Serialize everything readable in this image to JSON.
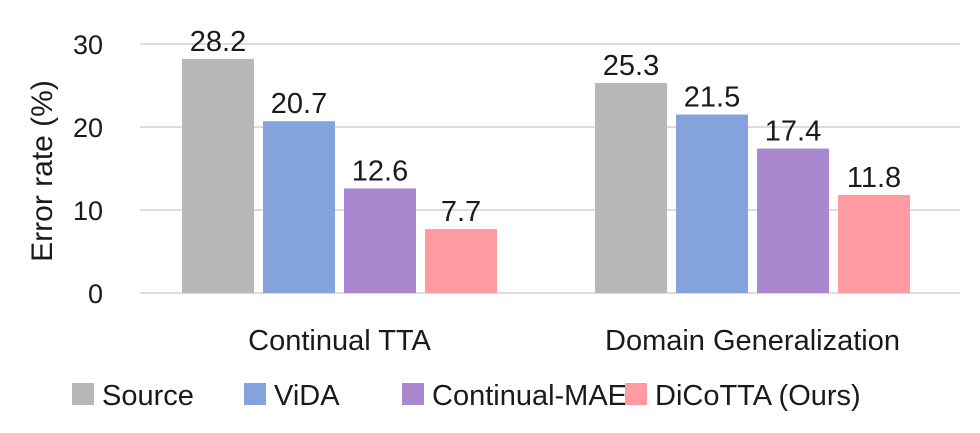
{
  "chart_data": {
    "type": "bar",
    "title": "",
    "xlabel": "",
    "ylabel": "Error rate (%)",
    "ylim": [
      0,
      30
    ],
    "yticks": [
      0,
      10,
      20,
      30
    ],
    "grid": true,
    "legend": "bottom",
    "categories": [
      "Continual TTA",
      "Domain Generalization"
    ],
    "series": [
      {
        "name": "Source",
        "color": "#b8b8b8",
        "values": [
          28.2,
          25.3
        ],
        "labels": [
          "28.2",
          "25.3"
        ]
      },
      {
        "name": "ViDA",
        "color": "#84a3dc",
        "values": [
          20.7,
          21.5
        ],
        "labels": [
          "20.7",
          "21.5"
        ]
      },
      {
        "name": "Continual-MAE",
        "color": "#aa88d0",
        "values": [
          12.6,
          17.4
        ],
        "labels": [
          "12.6",
          "17.4"
        ]
      },
      {
        "name": "DiCoTTA (Ours)",
        "color": "#ff9aa2",
        "values": [
          7.7,
          11.8
        ],
        "labels": [
          "7.7",
          "11.8"
        ]
      }
    ]
  }
}
